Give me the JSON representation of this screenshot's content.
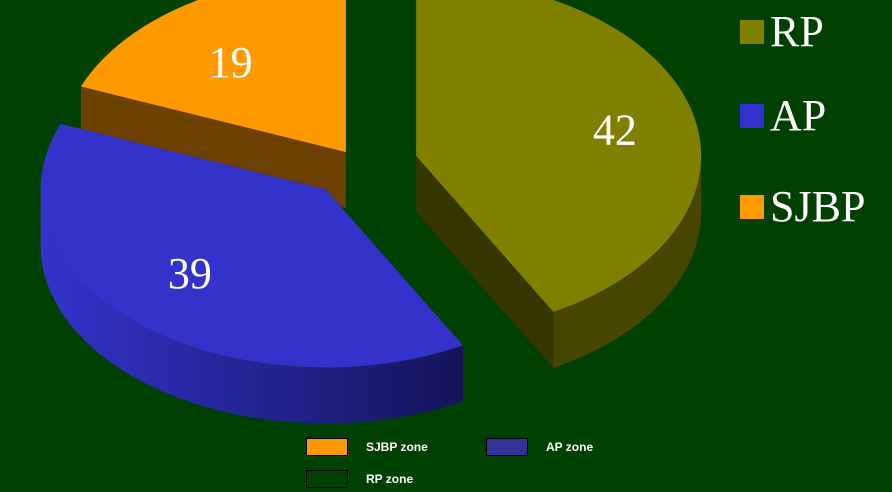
{
  "chart_data": {
    "type": "pie",
    "title": "",
    "slices": [
      {
        "label": "RP",
        "value": 42,
        "color": "#808000"
      },
      {
        "label": "AP",
        "value": 39,
        "color": "#3333cc"
      },
      {
        "label": "SJBP",
        "value": 19,
        "color": "#ff9900"
      }
    ],
    "legend": [
      {
        "label": "RP",
        "color": "#808000"
      },
      {
        "label": "AP",
        "color": "#3333cc"
      },
      {
        "label": "SJBP",
        "color": "#ff9900"
      }
    ],
    "legend_placement": "right",
    "secondary_legend": [
      {
        "label": "SJBP zone",
        "color": "#ff9900"
      },
      {
        "label": "AP zone",
        "color": "#333399"
      },
      {
        "label": "RP zone",
        "color": "#004000"
      }
    ],
    "secondary_legend_placement": "bottom",
    "exploded": true,
    "three_d": true
  },
  "colors": {
    "background": "#004000",
    "text": "#ffffff"
  }
}
